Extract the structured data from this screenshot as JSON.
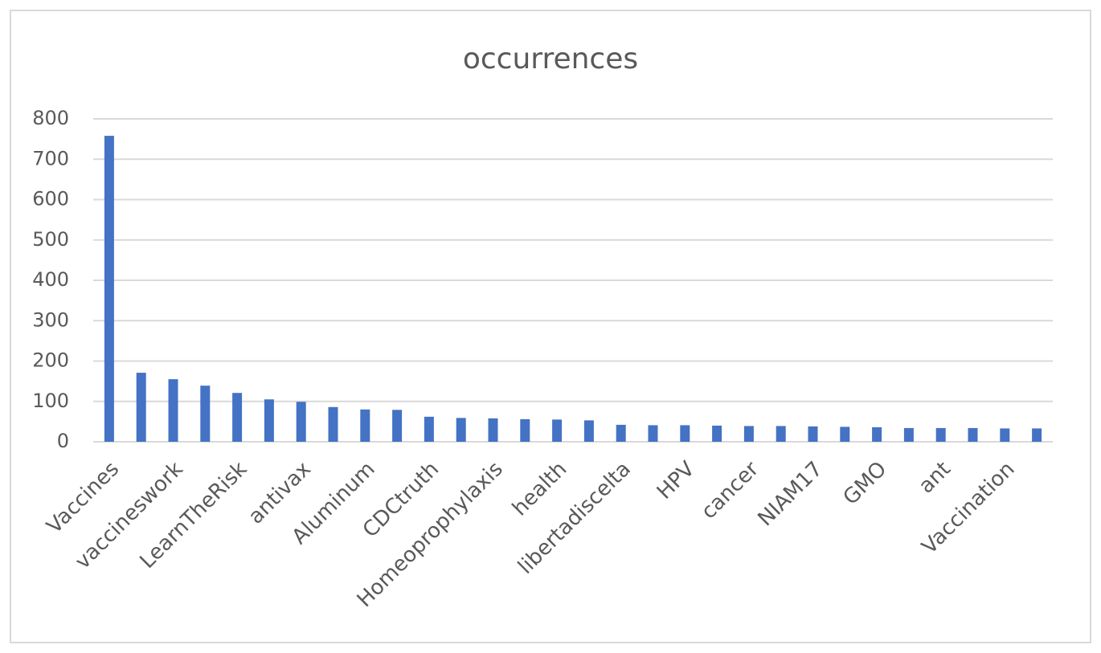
{
  "chart_data": {
    "type": "bar",
    "title": "occurrences",
    "categories": [
      "Vaccines",
      null,
      "vaccineswork",
      null,
      "LearnTheRisk",
      null,
      "antivax",
      null,
      "Aluminum",
      null,
      "CDCtruth",
      null,
      "Homeoprophylaxis",
      null,
      "health",
      null,
      "libertadiscelta",
      null,
      "HPV",
      null,
      "cancer",
      null,
      "NIAM17",
      null,
      "GMO",
      null,
      "ant",
      null,
      "Vaccination",
      null
    ],
    "values": [
      758,
      171,
      155,
      139,
      121,
      105,
      99,
      86,
      80,
      79,
      62,
      59,
      58,
      56,
      55,
      53,
      42,
      41,
      41,
      40,
      39,
      39,
      38,
      37,
      36,
      34,
      34,
      34,
      33,
      33
    ],
    "color": "#4472c4",
    "ylim": [
      0,
      800
    ],
    "yticks": [
      0,
      100,
      200,
      300,
      400,
      500,
      600,
      700,
      800
    ],
    "grid": true
  }
}
